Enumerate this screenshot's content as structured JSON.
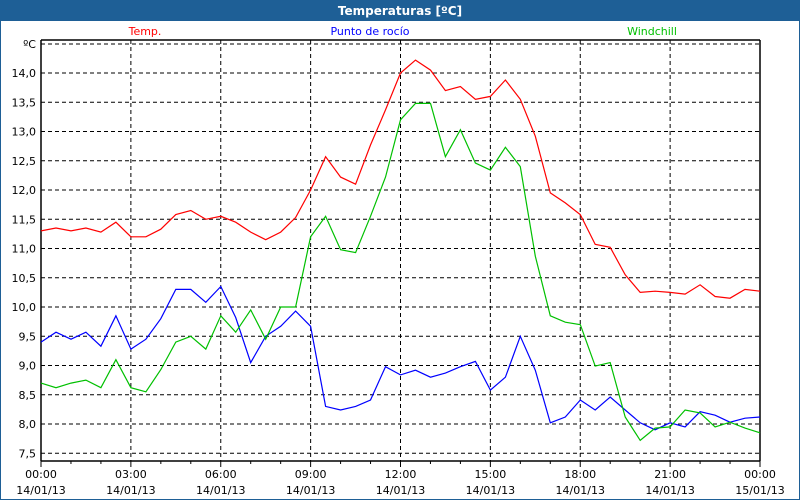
{
  "window": {
    "title": "Temperaturas [ºC]"
  },
  "chart_data": {
    "type": "line",
    "title": "Temperaturas [ºC]",
    "ylabel": "ºC",
    "xlabel": "",
    "ylim": [
      7.5,
      14.0
    ],
    "xlim_hours": [
      0,
      24
    ],
    "grid": true,
    "legend_placement": "top",
    "y_ticks": [
      "14,0",
      "13,5",
      "13,0",
      "12,5",
      "12,0",
      "11,5",
      "11,0",
      "10,5",
      "10,0",
      "9,5",
      "9,0",
      "8,5",
      "8,0",
      "7,5"
    ],
    "y_tick_values": [
      14.0,
      13.5,
      13.0,
      12.5,
      12.0,
      11.5,
      11.0,
      10.5,
      10.0,
      9.5,
      9.0,
      8.5,
      8.0,
      7.5
    ],
    "x_ticks": [
      {
        "time": "00:00",
        "date": "14/01/13",
        "hour": 0
      },
      {
        "time": "03:00",
        "date": "14/01/13",
        "hour": 3
      },
      {
        "time": "06:00",
        "date": "14/01/13",
        "hour": 6
      },
      {
        "time": "09:00",
        "date": "14/01/13",
        "hour": 9
      },
      {
        "time": "12:00",
        "date": "14/01/13",
        "hour": 12
      },
      {
        "time": "15:00",
        "date": "14/01/13",
        "hour": 15
      },
      {
        "time": "18:00",
        "date": "14/01/13",
        "hour": 18
      },
      {
        "time": "21:00",
        "date": "14/01/13",
        "hour": 21
      },
      {
        "time": "00:00",
        "date": "15/01/13",
        "hour": 24
      }
    ],
    "x_hours": [
      0,
      0.5,
      1,
      1.5,
      2,
      2.5,
      3,
      3.5,
      4,
      4.5,
      5,
      5.5,
      6,
      6.5,
      7,
      7.5,
      8,
      8.5,
      9,
      9.5,
      10,
      10.5,
      11,
      11.5,
      12,
      12.5,
      13,
      13.5,
      14,
      14.5,
      15,
      15.5,
      16,
      16.5,
      17,
      17.5,
      18,
      18.5,
      19,
      19.5,
      20,
      20.5,
      21,
      21.5,
      22,
      22.5,
      23,
      23.5,
      24
    ],
    "series": [
      {
        "name": "Temp.",
        "color": "#ff0000",
        "values": [
          11.3,
          11.35,
          11.3,
          11.35,
          11.28,
          11.45,
          11.2,
          11.2,
          11.33,
          11.58,
          11.65,
          11.5,
          11.55,
          11.45,
          11.28,
          11.15,
          11.28,
          11.53,
          12.0,
          12.57,
          12.22,
          12.1,
          12.77,
          13.37,
          14.0,
          14.22,
          14.05,
          13.7,
          13.77,
          13.55,
          13.6,
          13.88,
          13.55,
          12.92,
          11.95,
          11.78,
          11.58,
          11.07,
          11.02,
          10.55,
          10.25,
          10.27,
          10.25,
          10.22,
          10.38,
          10.18,
          10.15,
          10.3,
          10.27
        ]
      },
      {
        "name": "Punto de rocío",
        "color": "#0000ff",
        "values": [
          9.4,
          9.57,
          9.45,
          9.57,
          9.33,
          9.85,
          9.28,
          9.45,
          9.8,
          10.3,
          10.3,
          10.08,
          10.35,
          9.82,
          9.05,
          9.5,
          9.67,
          9.93,
          9.67,
          8.3,
          8.24,
          8.3,
          8.41,
          8.98,
          8.84,
          8.92,
          8.8,
          8.87,
          8.98,
          9.07,
          8.58,
          8.8,
          9.5,
          8.92,
          8.02,
          8.12,
          8.41,
          8.24,
          8.46,
          8.24,
          8.02,
          7.9,
          8.02,
          7.95,
          8.21,
          8.15,
          8.03,
          8.1,
          8.12
        ]
      },
      {
        "name": "Windchill",
        "color": "#00c000",
        "values": [
          8.7,
          8.62,
          8.7,
          8.75,
          8.62,
          9.1,
          8.62,
          8.55,
          8.93,
          9.4,
          9.5,
          9.28,
          9.85,
          9.57,
          9.95,
          9.45,
          10.0,
          10.0,
          11.2,
          11.55,
          10.98,
          10.93,
          11.55,
          12.22,
          13.2,
          13.48,
          13.48,
          12.57,
          13.03,
          12.46,
          12.34,
          12.73,
          12.4,
          10.87,
          9.85,
          9.74,
          9.7,
          8.99,
          9.05,
          8.12,
          7.72,
          7.93,
          7.95,
          8.24,
          8.19,
          7.95,
          8.03,
          7.93,
          7.85
        ]
      }
    ]
  }
}
